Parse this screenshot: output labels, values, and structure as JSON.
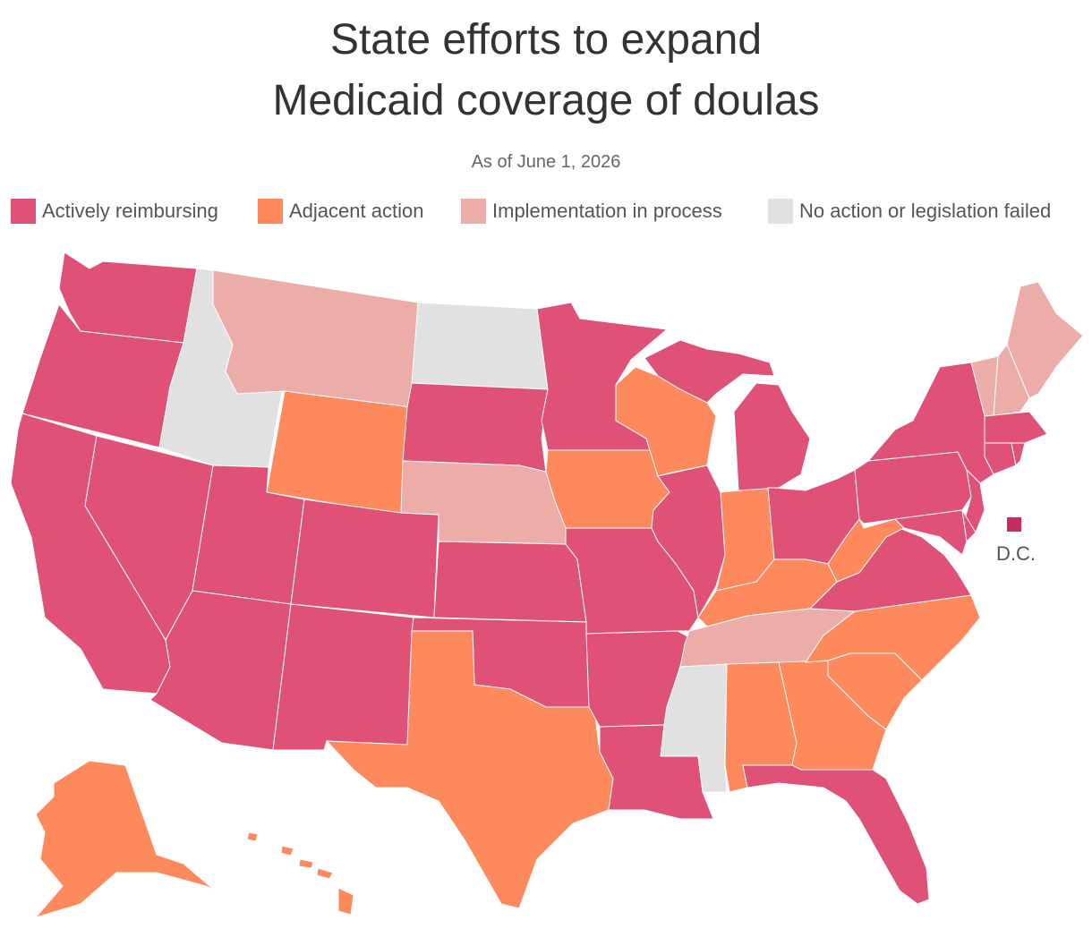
{
  "title": [
    "State efforts to expand",
    "Medicaid coverage of doulas"
  ],
  "subtitle": "As of June 1, 2026",
  "legend": [
    {
      "label": "Actively reimbursing",
      "color": "#e05177"
    },
    {
      "label": "Adjacent action",
      "color": "#fe895d"
    },
    {
      "label": "Implementation in process",
      "color": "#ecaca8"
    },
    {
      "label": "No action or legislation failed",
      "color": "#e0e1e0"
    }
  ],
  "regions": [
    0,
    0,
    0,
    0,
    3,
    2,
    1,
    0,
    0,
    0,
    0,
    3,
    0,
    2,
    0,
    0,
    1,
    0,
    1,
    0,
    0,
    0,
    1,
    0,
    1,
    0,
    0,
    1,
    2,
    3,
    1,
    1,
    0,
    1,
    1,
    0,
    1,
    0,
    0,
    0,
    0,
    0,
    2,
    2,
    2,
    0,
    0,
    0,
    1,
    1
  ],
  "dc": {
    "label": "D.C.",
    "status": 0,
    "color": "#c92b5c"
  }
}
